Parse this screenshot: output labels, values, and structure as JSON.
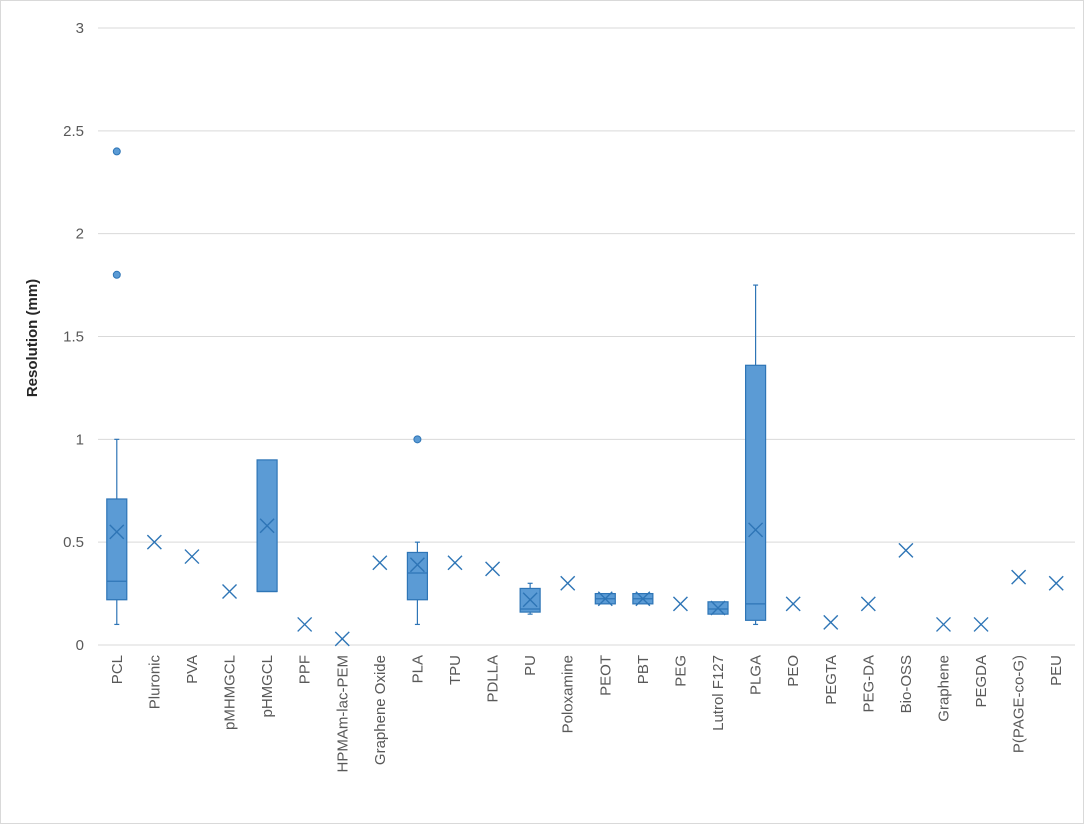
{
  "chart_data": {
    "type": "box",
    "title": "",
    "xlabel": "",
    "ylabel": "Resolution (mm)",
    "ylim": [
      0,
      3
    ],
    "yticks": [
      "0",
      "0.5",
      "1",
      "1.5",
      "2",
      "2.5",
      "3"
    ],
    "grid": true,
    "legend": "none",
    "colors": {
      "box_fill": "#5b9bd5",
      "box_stroke": "#2e75b6",
      "grid": "#d9d9d9",
      "axis": "#bfbfbf"
    },
    "categories": [
      {
        "name": "PCL",
        "q1": 0.22,
        "median": 0.31,
        "q3": 0.71,
        "min": 0.1,
        "max": 1.0,
        "mean": 0.55,
        "outliers": [
          1.8,
          2.4
        ]
      },
      {
        "name": "Pluronic",
        "mean": 0.5
      },
      {
        "name": "PVA",
        "mean": 0.43
      },
      {
        "name": "pMHMGCL",
        "mean": 0.26
      },
      {
        "name": "pHMGCL",
        "q1": 0.26,
        "median": 0.26,
        "q3": 0.9,
        "min": 0.26,
        "max": 0.9,
        "mean": 0.58
      },
      {
        "name": "PPF",
        "mean": 0.1
      },
      {
        "name": "HPMAm-lac-PEM",
        "mean": 0.03
      },
      {
        "name": "Graphene Oxide",
        "mean": 0.4
      },
      {
        "name": "PLA",
        "q1": 0.22,
        "median": 0.35,
        "q3": 0.45,
        "min": 0.1,
        "max": 0.5,
        "mean": 0.39,
        "outliers": [
          1.0
        ]
      },
      {
        "name": "TPU",
        "mean": 0.4
      },
      {
        "name": "PDLLA",
        "mean": 0.37
      },
      {
        "name": "PU",
        "q1": 0.16,
        "median": 0.175,
        "q3": 0.275,
        "min": 0.15,
        "max": 0.3,
        "mean": 0.22
      },
      {
        "name": "Poloxamine",
        "mean": 0.3
      },
      {
        "name": "PEOT",
        "q1": 0.2,
        "median": 0.225,
        "q3": 0.25,
        "min": 0.2,
        "max": 0.25,
        "mean": 0.225
      },
      {
        "name": "PBT",
        "q1": 0.2,
        "median": 0.225,
        "q3": 0.25,
        "min": 0.2,
        "max": 0.25,
        "mean": 0.225
      },
      {
        "name": "PEG",
        "mean": 0.2
      },
      {
        "name": "Lutrol F127",
        "q1": 0.15,
        "median": 0.175,
        "q3": 0.21,
        "min": 0.15,
        "max": 0.21,
        "mean": 0.18
      },
      {
        "name": "PLGA",
        "q1": 0.12,
        "median": 0.2,
        "q3": 1.36,
        "min": 0.1,
        "max": 1.75,
        "mean": 0.56
      },
      {
        "name": "PEO",
        "mean": 0.2
      },
      {
        "name": "PEGTA",
        "mean": 0.11
      },
      {
        "name": "PEG-DA",
        "mean": 0.2
      },
      {
        "name": "Bio-OSS",
        "mean": 0.46
      },
      {
        "name": "Graphene",
        "mean": 0.1
      },
      {
        "name": "PEGDA",
        "mean": 0.1
      },
      {
        "name": "P(PAGE-co-G)",
        "mean": 0.33
      },
      {
        "name": "PEU",
        "mean": 0.3
      }
    ]
  }
}
